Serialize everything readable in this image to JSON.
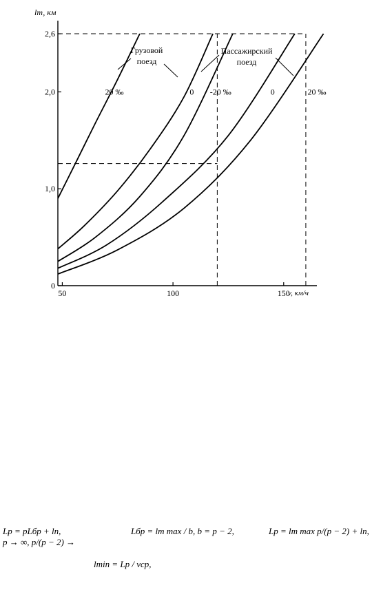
{
  "chart_data": {
    "type": "line",
    "ylabel": "lт, км",
    "xlabel": "v, км/ч",
    "xlim": [
      48,
      165
    ],
    "ylim": [
      0,
      2.65
    ],
    "xticks": [
      50,
      100,
      150
    ],
    "yticks": [
      0,
      1.0,
      2.0,
      2.6
    ],
    "ytick_labels": [
      "0",
      "1,0",
      "2,0",
      "2,6"
    ],
    "grid": false,
    "series": [
      {
        "name": "20 ‰",
        "x": [
          48,
          55,
          65,
          75,
          85
        ],
        "y": [
          0.9,
          1.22,
          1.68,
          2.13,
          2.6
        ]
      },
      {
        "name": "0",
        "x": [
          48,
          60,
          75,
          90,
          105,
          118
        ],
        "y": [
          0.38,
          0.62,
          0.98,
          1.42,
          1.95,
          2.6
        ]
      },
      {
        "name": "-20 ‰",
        "x": [
          48,
          65,
          85,
          105,
          127
        ],
        "y": [
          0.25,
          0.5,
          0.92,
          1.55,
          2.6
        ]
      },
      {
        "name": "0",
        "x": [
          48,
          70,
          95,
          125,
          155
        ],
        "y": [
          0.18,
          0.42,
          0.86,
          1.55,
          2.6
        ]
      },
      {
        "name": "20 ‰",
        "x": [
          48,
          75,
          105,
          135,
          168
        ],
        "y": [
          0.12,
          0.37,
          0.8,
          1.5,
          2.6
        ]
      }
    ],
    "guides": [
      {
        "type": "h",
        "y": 2.6,
        "x_to": 160
      },
      {
        "type": "h",
        "y": 1.26,
        "x_to": 120
      },
      {
        "type": "v",
        "x": 120,
        "y_to": 2.6
      },
      {
        "type": "v",
        "x": 160,
        "y_to": 2.6
      }
    ],
    "annotations": {
      "freight": "Грузовой\nпоезд",
      "passenger": "Пассажирский\nпоезд",
      "labels": [
        {
          "text": "20 ‰",
          "x": 73.5,
          "y": 2.0
        },
        {
          "text": "0",
          "x": 108.5,
          "y": 2.0
        },
        {
          "text": "-20 ‰",
          "x": 121.5,
          "y": 2.0
        },
        {
          "text": "0",
          "x": 145,
          "y": 2.0
        },
        {
          "text": "20 ‰",
          "x": 165,
          "y": 2.0
        }
      ]
    }
  },
  "formulas": {
    "f1": "Lp = pLбр + lп,",
    "f2": "Lбр = lт max / b, b = p − 2,",
    "f3": "Lp = lт max p/(p − 2) + lп,",
    "f4": "p → ∞,     p/(p − 2) →",
    "f5": "lmin = Lp / vср,"
  }
}
